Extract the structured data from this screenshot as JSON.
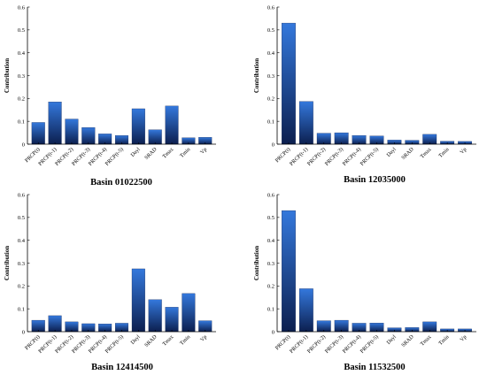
{
  "figure": {
    "bar_color_top": "#3478dc",
    "bar_color_bottom": "#0c1f4f",
    "axis_color": "#000000"
  },
  "chart_data": [
    {
      "type": "bar",
      "title": "Basin 01022500",
      "ylabel": "Contribution",
      "ylim": [
        0,
        0.6
      ],
      "yticks": [
        0,
        0.1,
        0.2,
        0.3,
        0.4,
        0.5,
        0.6
      ],
      "grid": false,
      "categories": [
        "PRCP(t)",
        "PRCP(t-1)",
        "PRCP(t-2)",
        "PRCP(t-3)",
        "PRCP(t-4)",
        "PRCP(t-5)",
        "Dayl",
        "SRAD",
        "Tmax",
        "Tmin",
        "Vp"
      ],
      "values": [
        0.095,
        0.185,
        0.11,
        0.073,
        0.045,
        0.038,
        0.155,
        0.063,
        0.167,
        0.028,
        0.03
      ]
    },
    {
      "type": "bar",
      "title": "Basin 12035000",
      "ylabel": "Contribution",
      "ylim": [
        0,
        0.6
      ],
      "yticks": [
        0,
        0.1,
        0.2,
        0.3,
        0.4,
        0.5,
        0.6
      ],
      "grid": false,
      "categories": [
        "PRCP(t)",
        "PRCP(t-1)",
        "PRCP(t-2)",
        "PRCP(t-3)",
        "PRCP(t-4)",
        "PRCP(t-5)",
        "Dayl",
        "SRAD",
        "Tmax",
        "Tmin",
        "Vp"
      ],
      "values": [
        0.53,
        0.187,
        0.048,
        0.05,
        0.038,
        0.036,
        0.018,
        0.017,
        0.043,
        0.013,
        0.012
      ]
    },
    {
      "type": "bar",
      "title": "Basin 12414500",
      "ylabel": "Contribution",
      "ylim": [
        0,
        0.6
      ],
      "yticks": [
        0,
        0.1,
        0.2,
        0.3,
        0.4,
        0.5,
        0.6
      ],
      "grid": false,
      "categories": [
        "PRCP(t)",
        "PRCP(t-1)",
        "PRCP(t-2)",
        "PRCP(t-3)",
        "PRCP(t-4)",
        "PRCP(t-5)",
        "Dayl",
        "SRAD",
        "Tmax",
        "Tmin",
        "Vp"
      ],
      "values": [
        0.05,
        0.07,
        0.043,
        0.035,
        0.034,
        0.037,
        0.275,
        0.14,
        0.107,
        0.167,
        0.048
      ]
    },
    {
      "type": "bar",
      "title": "Basin 11532500",
      "ylabel": "Contribution",
      "ylim": [
        0,
        0.6
      ],
      "yticks": [
        0,
        0.1,
        0.2,
        0.3,
        0.4,
        0.5,
        0.6
      ],
      "grid": false,
      "categories": [
        "PRCP(t)",
        "PRCP(t-1)",
        "PRCP(t-2)",
        "PRCP(t-3)",
        "PRCP(t-4)",
        "PRCP(t-5)",
        "Dayl",
        "SRAD",
        "Tmax",
        "Tmin",
        "Vp"
      ],
      "values": [
        0.53,
        0.188,
        0.048,
        0.05,
        0.037,
        0.038,
        0.017,
        0.018,
        0.043,
        0.012,
        0.012
      ]
    }
  ]
}
